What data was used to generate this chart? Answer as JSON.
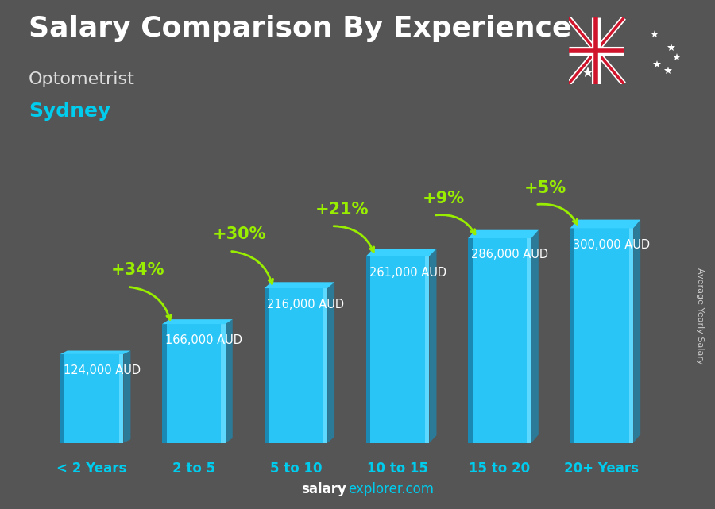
{
  "title": "Salary Comparison By Experience",
  "subtitle": "Optometrist",
  "city": "Sydney",
  "categories": [
    "< 2 Years",
    "2 to 5",
    "5 to 10",
    "10 to 15",
    "15 to 20",
    "20+ Years"
  ],
  "values": [
    124000,
    166000,
    216000,
    261000,
    286000,
    300000
  ],
  "value_labels": [
    "124,000 AUD",
    "166,000 AUD",
    "216,000 AUD",
    "261,000 AUD",
    "286,000 AUD",
    "300,000 AUD"
  ],
  "pct_changes": [
    "+34%",
    "+30%",
    "+21%",
    "+9%",
    "+5%"
  ],
  "bar_face_color": "#29c5f6",
  "bar_left_color": "#1a8ab5",
  "bar_right_color": "#5dd8ff",
  "bar_top_color": "#3ad0ff",
  "bg_color": "#555555",
  "title_color": "#ffffff",
  "subtitle_color": "#dddddd",
  "city_color": "#00ccee",
  "value_color": "#ffffff",
  "pct_color": "#99ee00",
  "arrow_color": "#99ee00",
  "tick_color": "#00ccee",
  "side_label_color": "#cccccc",
  "footer_salary_color": "#ffffff",
  "footer_explorer_color": "#00ccee",
  "title_fontsize": 26,
  "subtitle_fontsize": 16,
  "city_fontsize": 18,
  "value_fontsize": 10.5,
  "pct_fontsize": 15,
  "tick_fontsize": 12,
  "footer_fontsize": 12,
  "side_label_fontsize": 8,
  "ylim_max": 370000,
  "bar_width": 0.62,
  "side_label": "Average Yearly Salary"
}
